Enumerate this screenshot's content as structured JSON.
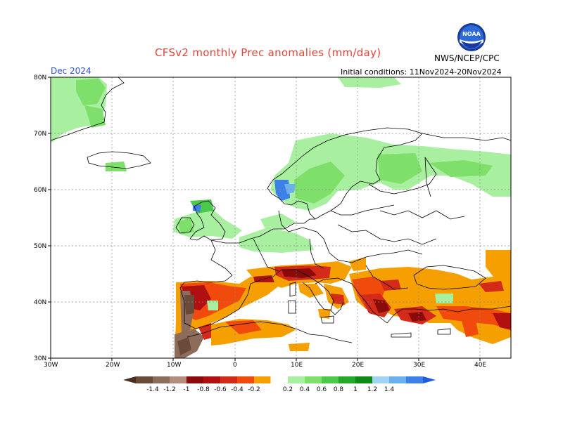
{
  "title": "CFSv2 monthly Prec anomalies (mm/day)",
  "period": "Dec 2024",
  "initial_conditions": "Initial conditions: 11Nov2024-20Nov2024",
  "agency": "NWS/NCEP/CPC",
  "logo_text": "NOAA",
  "axes": {
    "lat_labels": [
      "80N",
      "70N",
      "60N",
      "50N",
      "40N",
      "30N"
    ],
    "lon_labels": [
      "30W",
      "20W",
      "10W",
      "0",
      "10E",
      "20E",
      "30E",
      "40E"
    ],
    "lat_range": [
      30,
      80
    ],
    "lon_range": [
      -30,
      45
    ]
  },
  "colorbar": {
    "labels": [
      "-1.4",
      "-1.2",
      "-1",
      "-0.8",
      "-0.6",
      "-0.4",
      "-0.2",
      "0.2",
      "0.4",
      "0.6",
      "0.8",
      "1",
      "1.2",
      "1.4"
    ],
    "colors": [
      "#6b4a3a",
      "#8c6c5a",
      "#b48c7e",
      "#8b0a0a",
      "#b01010",
      "#d42a1a",
      "#f04a0c",
      "#f5a000",
      "#ffffff",
      "#a8f0a0",
      "#7ee06a",
      "#4cc84a",
      "#23a82c",
      "#0f8a16",
      "#a0d4f4",
      "#6cb0f0",
      "#3c80e8"
    ],
    "end_low_color": "#4a2e22",
    "end_high_color": "#1f5adf"
  }
}
